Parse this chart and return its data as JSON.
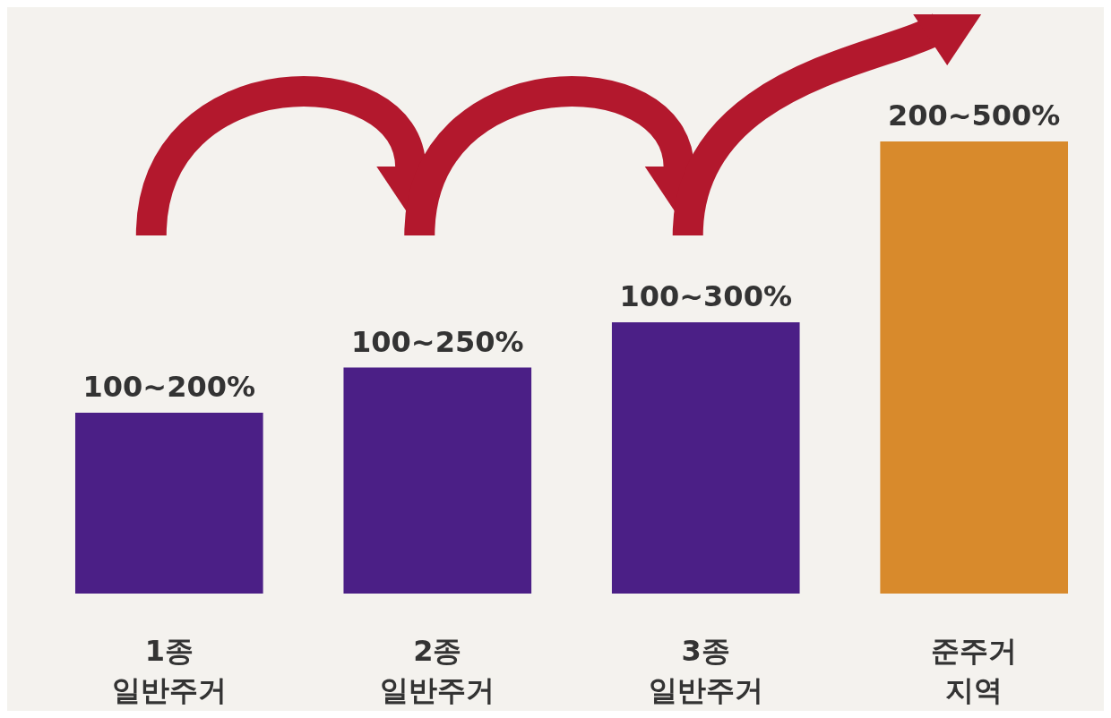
{
  "chart_data": {
    "type": "bar",
    "categories": [
      "1종 일반주거",
      "2종 일반주거",
      "3종 일반주거",
      "준주거 지역"
    ],
    "values": [
      200,
      250,
      300,
      500
    ],
    "colors": [
      "#4b1f86",
      "#4b1f86",
      "#4b1f86",
      "#d88a2c"
    ],
    "value_labels": [
      "100~200%",
      "100~250%",
      "100~300%",
      "200~500%"
    ]
  }
}
